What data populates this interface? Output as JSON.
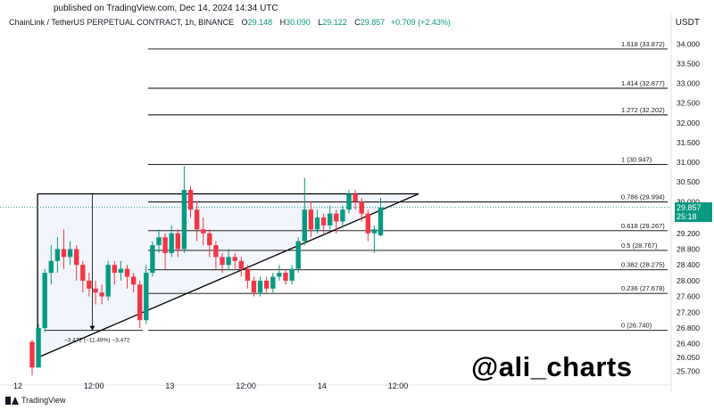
{
  "header": {
    "published": "published on TradingView.com, Dec 14, 2024 14:34 UTC",
    "symbol": "ChainLink / TetherUS PERPETUAL CONTRACT, 1h, BINANCE",
    "o_label": "O",
    "o_value": "29.148",
    "h_label": "H",
    "h_value": "30.090",
    "l_label": "L",
    "l_value": "29.122",
    "c_label": "C",
    "c_value": "29.857",
    "change": "+0.709 (+2.43%)",
    "currency": "USDT"
  },
  "footer": {
    "logo_text": "TradingView",
    "watermark": "@ali_charts"
  },
  "colors": {
    "up": "#089981",
    "down": "#f23645",
    "price_line": "#089981"
  },
  "price_tag": {
    "price": "29.857",
    "countdown": "25:18"
  },
  "measure_label": "−3.472 (−11.49%) −3,472",
  "chart_data": {
    "type": "candlestick",
    "title": "ChainLink / TetherUS PERPETUAL CONTRACT, 1h, BINANCE",
    "ylim": [
      25.4,
      34.3
    ],
    "y_ticks": [
      "34.000",
      "33.500",
      "33.000",
      "32.500",
      "32.000",
      "31.500",
      "31.000",
      "30.500",
      "30.000",
      "29.200",
      "28.800",
      "28.400",
      "28.000",
      "27.600",
      "27.200",
      "26.800",
      "26.400",
      "26.050",
      "25.700"
    ],
    "y_tick_values": [
      34.0,
      33.5,
      33.0,
      32.5,
      32.0,
      31.5,
      31.0,
      30.5,
      30.0,
      29.2,
      28.8,
      28.4,
      28.0,
      27.6,
      27.2,
      26.8,
      26.4,
      26.05,
      25.7
    ],
    "x_ticks": [
      "12",
      "12:00",
      "13",
      "12:00",
      "14",
      "12:00"
    ],
    "x_tick_bars": [
      0,
      12,
      24,
      36,
      48,
      60
    ],
    "fib_levels": [
      {
        "label": "1.618 (33.872)",
        "value": 33.872
      },
      {
        "label": "1.414 (32.877)",
        "value": 32.877
      },
      {
        "label": "1.272 (32.202)",
        "value": 32.202
      },
      {
        "label": "1 (30.947)",
        "value": 30.947
      },
      {
        "label": "0.786 (29.994)",
        "value": 29.994
      },
      {
        "label": "0.618 (29.267)",
        "value": 29.267
      },
      {
        "label": "0.5 (28.767)",
        "value": 28.767
      },
      {
        "label": "0.382 (28.275)",
        "value": 28.275
      },
      {
        "label": "0.236 (27.678)",
        "value": 27.678
      },
      {
        "label": "0 (26.740)",
        "value": 26.74
      }
    ],
    "triangle": {
      "top": 30.2,
      "apex_bar": 61,
      "start_bar": 1,
      "bottom_start": 26.05
    },
    "measure": {
      "bar": 9.5,
      "from": 30.2,
      "to": 26.74
    },
    "candles": [
      [
        26.45,
        25.8,
        25.6,
        26.5
      ],
      [
        25.8,
        26.8,
        25.8,
        26.9
      ],
      [
        26.8,
        28.2,
        26.7,
        28.3
      ],
      [
        28.2,
        28.5,
        27.9,
        28.9
      ],
      [
        28.5,
        28.8,
        28.2,
        29.1
      ],
      [
        28.8,
        28.6,
        28.3,
        29.3
      ],
      [
        28.6,
        28.8,
        28.4,
        29.0
      ],
      [
        28.8,
        28.4,
        28.0,
        28.9
      ],
      [
        28.4,
        28.0,
        27.7,
        28.5
      ],
      [
        28.0,
        27.8,
        27.6,
        28.2
      ],
      [
        27.8,
        27.7,
        27.4,
        28.0
      ],
      [
        27.7,
        27.6,
        27.4,
        27.9
      ],
      [
        27.6,
        28.4,
        27.5,
        28.5
      ],
      [
        28.4,
        28.2,
        27.9,
        28.5
      ],
      [
        28.2,
        28.3,
        28.0,
        28.5
      ],
      [
        28.3,
        28.1,
        27.8,
        28.4
      ],
      [
        28.1,
        27.9,
        27.7,
        28.2
      ],
      [
        27.9,
        27.0,
        26.8,
        28.0
      ],
      [
        27.0,
        28.2,
        26.9,
        28.4
      ],
      [
        28.2,
        28.9,
        28.1,
        29.0
      ],
      [
        28.9,
        29.1,
        28.7,
        29.3
      ],
      [
        29.1,
        28.7,
        28.3,
        29.2
      ],
      [
        28.7,
        29.2,
        28.6,
        29.4
      ],
      [
        29.2,
        28.8,
        28.6,
        29.3
      ],
      [
        28.8,
        30.3,
        28.7,
        30.9
      ],
      [
        30.3,
        29.8,
        29.6,
        30.4
      ],
      [
        29.8,
        29.3,
        29.0,
        30.0
      ],
      [
        29.3,
        29.2,
        28.9,
        29.6
      ],
      [
        29.2,
        28.9,
        28.6,
        29.3
      ],
      [
        28.9,
        28.6,
        28.3,
        29.0
      ],
      [
        28.6,
        28.4,
        28.2,
        28.7
      ],
      [
        28.4,
        28.6,
        28.3,
        28.8
      ],
      [
        28.6,
        28.5,
        28.3,
        28.7
      ],
      [
        28.5,
        28.3,
        28.1,
        28.6
      ],
      [
        28.3,
        28.0,
        27.8,
        28.4
      ],
      [
        28.0,
        27.7,
        27.6,
        28.1
      ],
      [
        27.7,
        28.0,
        27.6,
        28.1
      ],
      [
        28.0,
        27.8,
        27.7,
        28.1
      ],
      [
        27.8,
        28.1,
        27.7,
        28.2
      ],
      [
        28.1,
        28.2,
        28.0,
        28.4
      ],
      [
        28.2,
        28.0,
        27.9,
        28.3
      ],
      [
        28.0,
        28.3,
        27.9,
        28.4
      ],
      [
        28.3,
        29.0,
        28.2,
        29.1
      ],
      [
        29.0,
        29.8,
        28.9,
        30.6
      ],
      [
        29.8,
        29.3,
        29.1,
        30.0
      ],
      [
        29.3,
        29.6,
        29.2,
        29.8
      ],
      [
        29.6,
        29.4,
        29.2,
        29.7
      ],
      [
        29.4,
        29.7,
        29.3,
        29.9
      ],
      [
        29.7,
        29.5,
        29.2,
        29.8
      ],
      [
        29.5,
        29.8,
        29.4,
        29.9
      ],
      [
        29.8,
        30.2,
        29.7,
        30.3
      ],
      [
        30.2,
        30.0,
        29.8,
        30.3
      ],
      [
        30.0,
        29.7,
        29.5,
        30.1
      ],
      [
        29.7,
        29.2,
        29.0,
        29.8
      ],
      [
        29.2,
        29.3,
        28.7,
        29.4
      ],
      [
        29.148,
        29.857,
        29.122,
        30.09
      ]
    ]
  }
}
